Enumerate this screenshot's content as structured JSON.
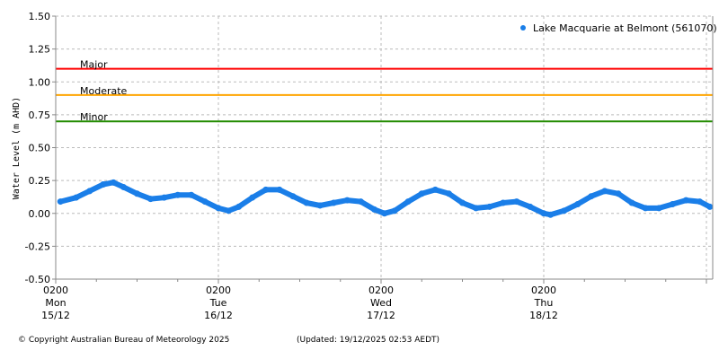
{
  "chart_data": {
    "type": "scatter",
    "ylabel": "Water Level (m AHD)",
    "ylim": [
      -0.5,
      1.5
    ],
    "yticks": [
      "1.50",
      "1.25",
      "1.00",
      "0.75",
      "0.50",
      "0.25",
      "0.00",
      "-0.25",
      "-0.50"
    ],
    "ytick_values": [
      1.5,
      1.25,
      1.0,
      0.75,
      0.5,
      0.25,
      0.0,
      -0.25,
      -0.5
    ],
    "xlim_hours_from_0200_15_12": [
      0,
      97
    ],
    "xticks": [
      {
        "hour": 0,
        "lines": [
          "0200",
          "Mon",
          "15/12"
        ]
      },
      {
        "hour": 24,
        "lines": [
          "0200",
          "Tue",
          "16/12"
        ]
      },
      {
        "hour": 48,
        "lines": [
          "0200",
          "Wed",
          "17/12"
        ]
      },
      {
        "hour": 72,
        "lines": [
          "0200",
          "Thu",
          "18/12"
        ]
      },
      {
        "hour": 96,
        "lines": []
      }
    ],
    "grid": true,
    "legend": {
      "label": "Lake Macquarie at Belmont (561070)",
      "placement": "top-right"
    },
    "series_color": "#1a7ee8",
    "thresholds": [
      {
        "label": "Major",
        "value": 1.1,
        "color": "#ff0000"
      },
      {
        "label": "Moderate",
        "value": 0.9,
        "color": "#ffa500"
      },
      {
        "label": "Minor",
        "value": 0.7,
        "color": "#228b00"
      }
    ],
    "series": [
      {
        "name": "Lake Macquarie at Belmont (561070)",
        "x": [
          0.7,
          3,
          5,
          7,
          8.5,
          10,
          12,
          14,
          16,
          18,
          20,
          22,
          24,
          25.5,
          27,
          29,
          31,
          33,
          35,
          37,
          39,
          41,
          43,
          45,
          47,
          48.5,
          50,
          52,
          54,
          56,
          58,
          60,
          62,
          64,
          66,
          68,
          70,
          72,
          73,
          75,
          77,
          79,
          81,
          83,
          85,
          87,
          89,
          91,
          93,
          95,
          96.5
        ],
        "y": [
          0.09,
          0.12,
          0.17,
          0.22,
          0.235,
          0.2,
          0.15,
          0.11,
          0.12,
          0.14,
          0.14,
          0.09,
          0.04,
          0.02,
          0.05,
          0.12,
          0.18,
          0.18,
          0.13,
          0.08,
          0.06,
          0.08,
          0.1,
          0.09,
          0.03,
          0.0,
          0.02,
          0.09,
          0.15,
          0.18,
          0.15,
          0.08,
          0.04,
          0.05,
          0.08,
          0.09,
          0.05,
          0.0,
          -0.01,
          0.02,
          0.07,
          0.13,
          0.17,
          0.15,
          0.08,
          0.04,
          0.04,
          0.07,
          0.1,
          0.09,
          0.05
        ]
      }
    ]
  },
  "footer": {
    "copyright": "© Copyright Australian Bureau of Meteorology 2025",
    "updated": "(Updated: 19/12/2025 02:53 AEDT)"
  }
}
